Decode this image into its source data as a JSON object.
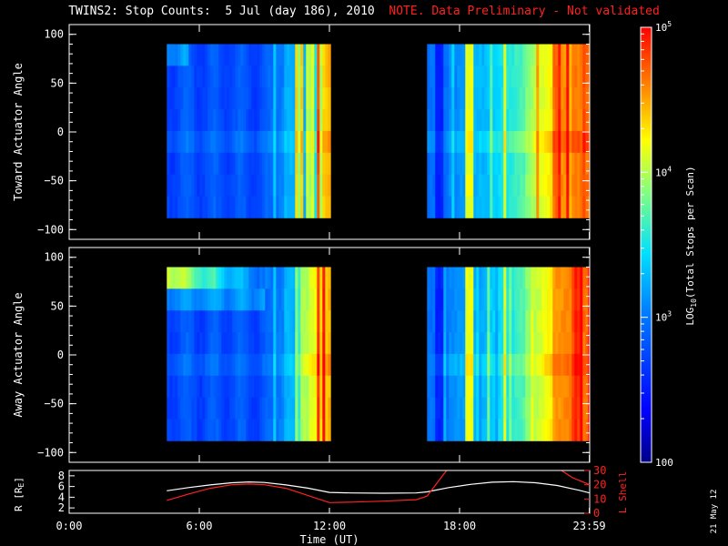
{
  "title": {
    "main": "TWINS2: Stop Counts:  5 Jul (day 186), 2010",
    "note": "NOTE. Data Preliminary - Not validated"
  },
  "stamp": "21 May 12",
  "colors": {
    "background": "#000000",
    "axes": "#ffffff",
    "note": "#ff2020",
    "r_line": "#ffffff",
    "l_line": "#ff2020"
  },
  "chart_data": [
    {
      "type": "heatmap",
      "ylabel": "Toward Actuator Angle",
      "ylim": [
        -110,
        110
      ],
      "yticks": [
        100,
        50,
        0,
        -50,
        -100
      ],
      "ytick_labels": [
        "100",
        "50",
        "0",
        "−50",
        "−100"
      ],
      "xlim_hours": [
        0,
        24
      ],
      "data_segments_hours": [
        [
          4.5,
          12.0
        ],
        [
          16.5,
          24.0
        ]
      ],
      "angle_range": [
        -88,
        90
      ]
    },
    {
      "type": "heatmap",
      "ylabel": "Away Actuator Angle",
      "ylim": [
        -110,
        110
      ],
      "yticks": [
        100,
        50,
        0,
        -50,
        -100
      ],
      "ytick_labels": [
        "100",
        "50",
        "0",
        "−50",
        "−100"
      ],
      "xlim_hours": [
        0,
        24
      ],
      "data_segments_hours": [
        [
          4.5,
          12.0
        ],
        [
          16.5,
          24.0
        ]
      ],
      "angle_range": [
        -88,
        90
      ]
    },
    {
      "type": "line",
      "ylabel_left": "R [R",
      "ylabel_left_sub": "E",
      "ylabel_left_end": "]",
      "ylabel_right": "L Shell",
      "ylim_left": [
        1,
        9
      ],
      "yticks_left": [
        2,
        4,
        6,
        8
      ],
      "ylim_right": [
        0,
        30
      ],
      "yticks_right": [
        0,
        10,
        20,
        30
      ],
      "xlabel": "Time (UT)",
      "xticks_hours": [
        0,
        6,
        12,
        18,
        23.983
      ],
      "xtick_labels": [
        "0:00",
        "6:00",
        "12:00",
        "18:00",
        "23:59"
      ],
      "series": [
        {
          "axis": "left",
          "x": [
            4.5,
            5.5,
            6.5,
            7.5,
            8.3,
            9.0,
            10.0,
            11.0,
            12.0,
            13.0,
            14.5,
            16.0,
            16.5,
            17.5,
            18.5,
            19.5,
            20.5,
            21.5,
            22.5,
            23.5,
            24.0
          ],
          "y": [
            5.2,
            5.8,
            6.3,
            6.7,
            6.85,
            6.75,
            6.3,
            5.7,
            4.9,
            4.8,
            4.75,
            4.8,
            5.0,
            5.8,
            6.4,
            6.8,
            6.9,
            6.7,
            6.2,
            5.3,
            4.8
          ]
        },
        {
          "axis": "right",
          "x": [
            4.5,
            5.5,
            6.5,
            7.5,
            8.3,
            9.0,
            10.0,
            11.0,
            12.0,
            13.0,
            14.5,
            16.0,
            16.5,
            17.0,
            17.5
          ],
          "y": [
            9.0,
            13.5,
            17.5,
            20.0,
            20.5,
            20.0,
            17.5,
            12.5,
            7.5,
            7.8,
            8.5,
            9.5,
            12.0,
            22.0,
            32.0
          ]
        },
        {
          "axis": "right",
          "x": [
            22.5,
            23.2,
            24.0
          ],
          "y": [
            32.0,
            25.0,
            20.0
          ]
        }
      ]
    },
    {
      "type": "heatmap",
      "ylabel": "LOG10(Total Stops per Scan)",
      "ylabel_pre": "LOG",
      "ylabel_sub": "10",
      "ylabel_post": "(Total Stops per Scan)",
      "colorbar_range": [
        100,
        100000
      ],
      "colorbar_ticks": [
        100,
        1000,
        10000,
        100000
      ],
      "colorbar_tick_labels": [
        {
          "base": "100",
          "exp": ""
        },
        {
          "base": "10",
          "exp": "3"
        },
        {
          "base": "10",
          "exp": "4"
        },
        {
          "base": "10",
          "exp": "5"
        }
      ]
    }
  ]
}
